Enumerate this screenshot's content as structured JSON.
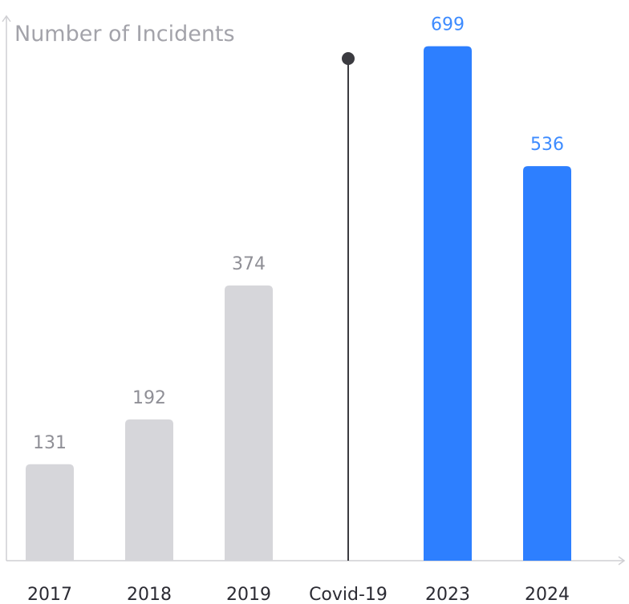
{
  "chart_data": {
    "type": "bar",
    "ylabel": "Number of Incidents",
    "xlabel": "",
    "categories": [
      "2017",
      "2018",
      "2019",
      "Covid-19",
      "2023",
      "2024"
    ],
    "values": [
      131,
      192,
      374,
      null,
      699,
      536
    ],
    "ylim": [
      0,
      740
    ],
    "grid": false,
    "legend": "none",
    "annotations": [
      {
        "type": "vertical-line-marker",
        "category": "Covid-19"
      }
    ],
    "colors": {
      "pre_covid": "#d6d6da",
      "post_covid": "#2d7fff",
      "marker": "#3b3b40",
      "axis": "#cfcfd3",
      "pre_label": "#8f8f96",
      "post_label": "#3d8bff"
    }
  }
}
